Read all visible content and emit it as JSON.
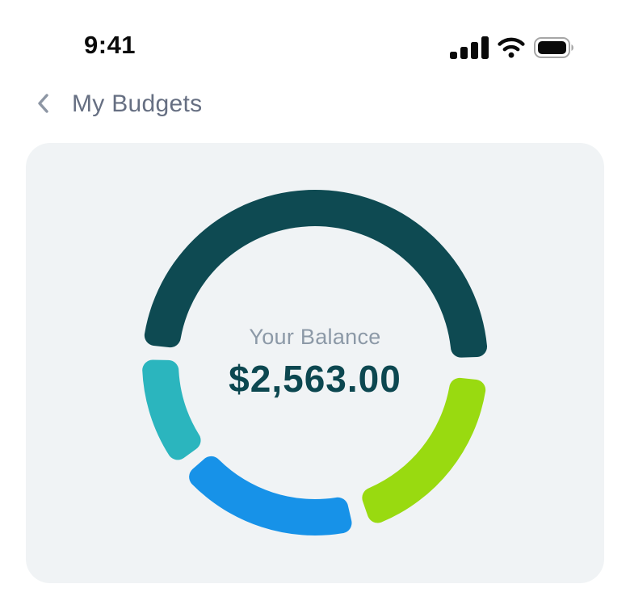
{
  "status_bar": {
    "time": "9:41",
    "icons": [
      "cellular-signal",
      "wifi",
      "battery-full"
    ]
  },
  "header": {
    "back_icon": "chevron-left",
    "title": "My Budgets"
  },
  "balance_card": {
    "label": "Your Balance",
    "amount": "$2,563.00"
  },
  "chart_data": {
    "type": "pie",
    "variant": "donut-segmented",
    "title": "",
    "center_label": "Your Balance",
    "center_value": "$2,563.00",
    "legend": "none",
    "angle_reference": "degrees clockwise from 12 o'clock, tip-to-tip per segment",
    "segments": [
      {
        "name": "teal-dark",
        "color": "#0E4A52",
        "start_deg": 276,
        "end_deg": 448,
        "share_pct": 47.8
      },
      {
        "name": "lime",
        "color": "#99DA10",
        "start_deg": 96,
        "end_deg": 161,
        "share_pct": 18.1
      },
      {
        "name": "blue",
        "color": "#1792E8",
        "start_deg": 167,
        "end_deg": 229,
        "share_pct": 17.2
      },
      {
        "name": "cyan",
        "color": "#2BB5BE",
        "start_deg": 234,
        "end_deg": 271,
        "share_pct": 10.3
      }
    ],
    "gap_deg": 6
  },
  "colors": {
    "page_bg": "#FFFFFF",
    "card_bg": "#F0F3F5",
    "status_text": "#0A0A0A",
    "title_text": "#666F82",
    "chevron": "#8D96A4",
    "balance_label": "#8C99A7",
    "balance_amount": "#0C4750",
    "battery_outline": "#A6A6A6"
  }
}
